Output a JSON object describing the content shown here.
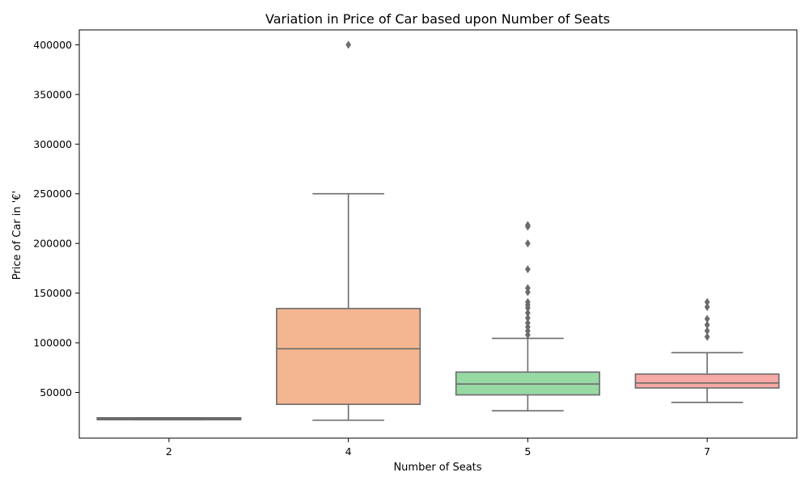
{
  "chart_data": {
    "type": "box",
    "title": "Variation in Price of Car based upon Number of Seats",
    "xlabel": "Number of Seats",
    "ylabel": "Price of Car in '€'",
    "ylim": [
      4000,
      415000
    ],
    "yticks": [
      50000,
      100000,
      150000,
      200000,
      250000,
      300000,
      350000,
      400000
    ],
    "yticklabels": [
      "50000",
      "100000",
      "150000",
      "200000",
      "250000",
      "300000",
      "350000",
      "400000"
    ],
    "categories": [
      "2",
      "4",
      "5",
      "7"
    ],
    "grid": false,
    "boxes": [
      {
        "category": "2",
        "color": "#8fc9e8",
        "whisker_low": 22500,
        "q1": 22500,
        "median": 23500,
        "q3": 24500,
        "whisker_high": 24500,
        "outliers": []
      },
      {
        "category": "4",
        "color": "#f4b690",
        "whisker_low": 22000,
        "q1": 38000,
        "median": 94000,
        "q3": 134500,
        "whisker_high": 250000,
        "outliers": [
          400000
        ]
      },
      {
        "category": "5",
        "color": "#97d8a3",
        "whisker_low": 31500,
        "q1": 47500,
        "median": 58500,
        "q3": 70500,
        "whisker_high": 104500,
        "outliers": [
          108000,
          112000,
          116000,
          120000,
          125000,
          130000,
          135000,
          138000,
          141000,
          151000,
          155000,
          174000,
          200000,
          217000,
          218500
        ]
      },
      {
        "category": "7",
        "color": "#f6a8a6",
        "whisker_low": 40000,
        "q1": 54500,
        "median": 59500,
        "q3": 68500,
        "whisker_high": 90000,
        "outliers": [
          106000,
          112000,
          118000,
          124000,
          136000,
          141000
        ]
      }
    ]
  }
}
